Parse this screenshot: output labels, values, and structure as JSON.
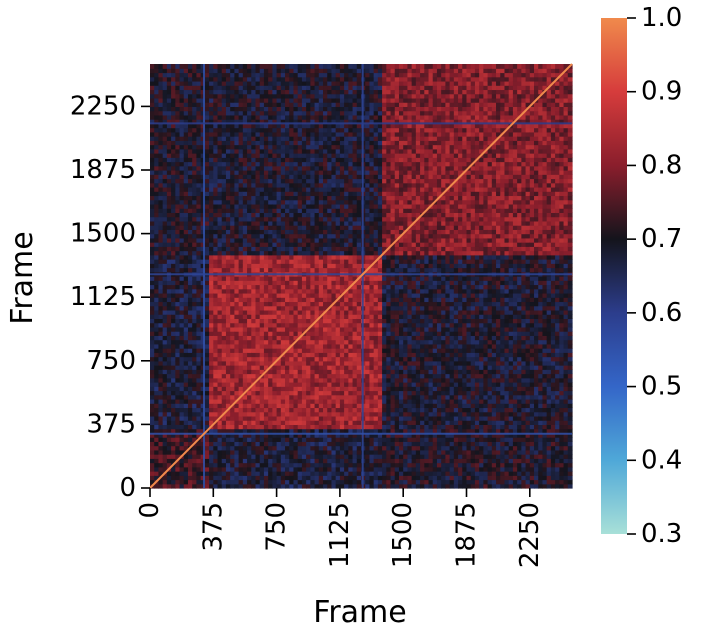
{
  "chart_data": {
    "type": "heatmap",
    "title": "",
    "xlabel": "Frame",
    "ylabel": "Frame",
    "x_range": [
      0,
      2500
    ],
    "y_range": [
      0,
      2500
    ],
    "x_ticks": [
      0,
      375,
      750,
      1125,
      1500,
      1875,
      2250
    ],
    "y_ticks": [
      0,
      375,
      750,
      1125,
      1500,
      1875,
      2250
    ],
    "diagonal_value": 1.0,
    "colorbar": {
      "min": 0.3,
      "max": 1.0,
      "ticks": [
        "1.0",
        "0.9",
        "0.8",
        "0.7",
        "0.6",
        "0.5",
        "0.4",
        "0.3"
      ],
      "colors": [
        {
          "value": 0.3,
          "color": "#a8e0d8"
        },
        {
          "value": 0.4,
          "color": "#4fa8d8"
        },
        {
          "value": 0.5,
          "color": "#3466c8"
        },
        {
          "value": 0.6,
          "color": "#2c3d8c"
        },
        {
          "value": 0.7,
          "color": "#14141c"
        },
        {
          "value": 0.8,
          "color": "#8a1e2c"
        },
        {
          "value": 0.9,
          "color": "#d63c3c"
        },
        {
          "value": 1.0,
          "color": "#f08a4c"
        }
      ]
    },
    "segments": [
      {
        "start": 0,
        "end": 360,
        "level": 0.7
      },
      {
        "start": 360,
        "end": 1380,
        "level": 0.83
      },
      {
        "start": 1380,
        "end": 2500,
        "level": 0.8
      }
    ],
    "block_similarity": [
      [
        0.73,
        0.68,
        0.7
      ],
      [
        0.68,
        0.83,
        0.69
      ],
      [
        0.7,
        0.69,
        0.8
      ]
    ],
    "low_similarity_lines": [
      {
        "axis": "x",
        "frame": 320,
        "value": 0.55
      },
      {
        "axis": "x",
        "frame": 1260,
        "value": 0.58
      },
      {
        "axis": "y",
        "frame": 320,
        "value": 0.55
      },
      {
        "axis": "y",
        "frame": 1260,
        "value": 0.58
      },
      {
        "axis": "y",
        "frame": 2150,
        "value": 0.6
      }
    ]
  }
}
